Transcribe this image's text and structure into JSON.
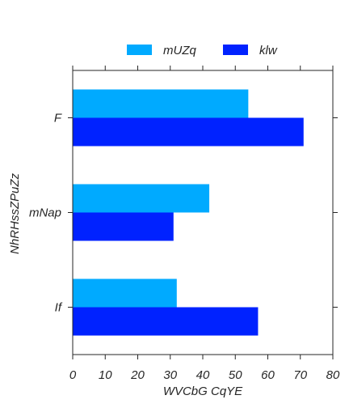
{
  "chart_data": {
    "type": "bar",
    "orientation": "horizontal",
    "categories": [
      "F",
      "mNap",
      "If"
    ],
    "series": [
      {
        "name": "mUZq",
        "color": "#00AAFF",
        "values": [
          54,
          42,
          32
        ]
      },
      {
        "name": "klw",
        "color": "#0022FF",
        "values": [
          71,
          31,
          57
        ]
      }
    ],
    "xlabel": "WVCbG  CqYE",
    "ylabel": "NhRHssZPuZz",
    "xlim": [
      0,
      80
    ],
    "xticks": [
      0,
      10,
      20,
      30,
      40,
      50,
      60,
      70,
      80
    ],
    "grid": false,
    "legend_position": "top-center"
  }
}
